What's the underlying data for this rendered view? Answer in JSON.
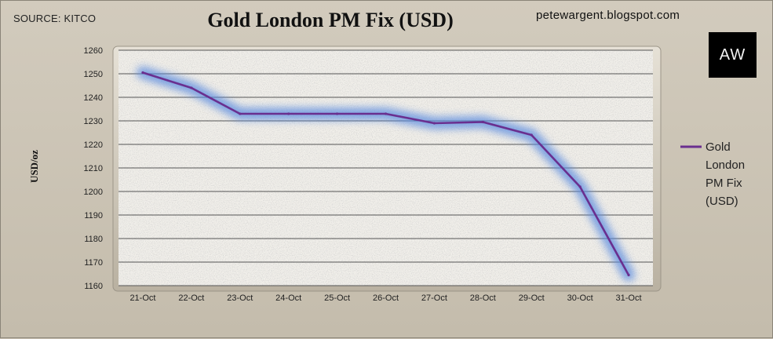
{
  "header": {
    "source": "SOURCE: KITCO",
    "blog": "petewargent.blogspot.com",
    "logo": "AW"
  },
  "colors": {
    "line": "#6a2f8f",
    "glow": "#5a8be0",
    "plot_bg": "#f1efea",
    "grid": "#555555"
  },
  "chart_data": {
    "type": "line",
    "title": "Gold London PM Fix (USD)",
    "xlabel": "",
    "ylabel": "USD/oz",
    "categories": [
      "21-Oct",
      "22-Oct",
      "23-Oct",
      "24-Oct",
      "25-Oct",
      "26-Oct",
      "27-Oct",
      "28-Oct",
      "29-Oct",
      "30-Oct",
      "31-Oct"
    ],
    "series": [
      {
        "name": "Gold London PM Fix (USD)",
        "values": [
          1250.5,
          1244,
          1233,
          1233,
          1233,
          1233,
          1229,
          1229.5,
          1224,
          1202,
          1164.5
        ]
      }
    ],
    "ylim": [
      1160,
      1260
    ],
    "yticks": [
      1160,
      1170,
      1180,
      1190,
      1200,
      1210,
      1220,
      1230,
      1240,
      1250,
      1260
    ],
    "grid": true,
    "legend": "right"
  }
}
